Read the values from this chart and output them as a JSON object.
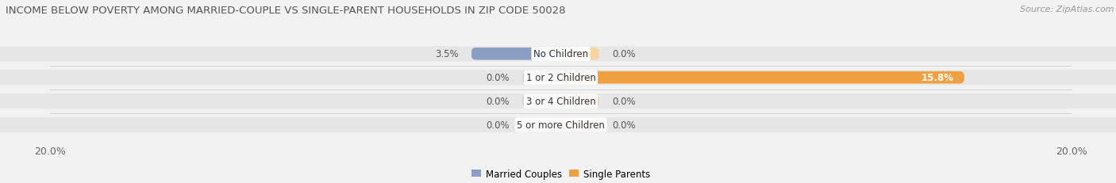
{
  "title": "INCOME BELOW POVERTY AMONG MARRIED-COUPLE VS SINGLE-PARENT HOUSEHOLDS IN ZIP CODE 50028",
  "source": "Source: ZipAtlas.com",
  "categories": [
    "No Children",
    "1 or 2 Children",
    "3 or 4 Children",
    "5 or more Children"
  ],
  "married_values": [
    3.5,
    0.0,
    0.0,
    0.0
  ],
  "single_values": [
    0.0,
    15.8,
    0.0,
    0.0
  ],
  "max_val": 20.0,
  "married_color": "#8b9dc3",
  "single_color": "#f0a040",
  "married_color_faint": "#c8d4e8",
  "single_color_faint": "#f5d4a0",
  "bg_color": "#f2f2f2",
  "row_bg_color": "#e6e6e6",
  "legend_married": "Married Couples",
  "legend_single": "Single Parents",
  "title_fontsize": 9.5,
  "source_fontsize": 8,
  "label_fontsize": 8.5,
  "tick_fontsize": 9,
  "min_bar_width": 1.5
}
